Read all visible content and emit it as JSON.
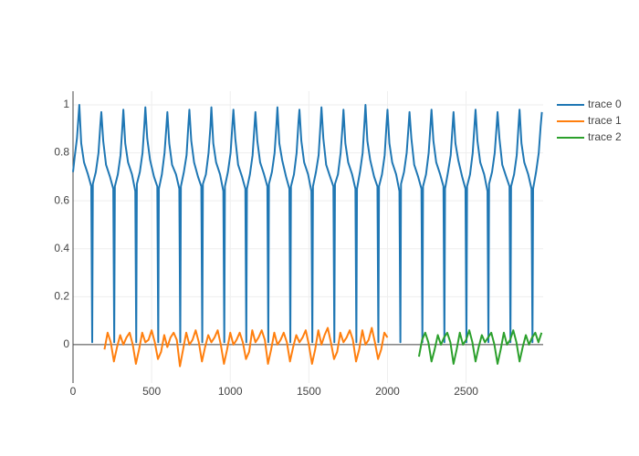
{
  "chart_data": {
    "type": "line",
    "xlim": [
      0,
      2990
    ],
    "ylim": [
      -0.16,
      1.057
    ],
    "xticks": [
      0,
      500,
      1000,
      1500,
      2000,
      2500
    ],
    "yticks": [
      0,
      0.2,
      0.4,
      0.6,
      0.8,
      1
    ],
    "grid": true,
    "legend": "outside-top-right",
    "series": [
      {
        "name": "trace 0",
        "color": "#1f77b4",
        "x": [
          0,
          10,
          25,
          40,
          52,
          70,
          95,
          116,
          122,
          126,
          145,
          162,
          174,
          180,
          192,
          210,
          235,
          256,
          262,
          266,
          285,
          302,
          314,
          320,
          332,
          350,
          375,
          396,
          402,
          406,
          425,
          442,
          454,
          460,
          472,
          490,
          515,
          536,
          542,
          546,
          565,
          582,
          594,
          600,
          612,
          630,
          655,
          676,
          682,
          686,
          705,
          722,
          734,
          740,
          752,
          770,
          795,
          816,
          822,
          826,
          845,
          862,
          874,
          880,
          892,
          910,
          935,
          956,
          962,
          966,
          985,
          1002,
          1014,
          1020,
          1032,
          1050,
          1075,
          1096,
          1102,
          1106,
          1125,
          1142,
          1154,
          1160,
          1172,
          1190,
          1215,
          1236,
          1242,
          1246,
          1265,
          1282,
          1294,
          1300,
          1312,
          1330,
          1355,
          1376,
          1382,
          1386,
          1405,
          1422,
          1434,
          1440,
          1452,
          1470,
          1495,
          1516,
          1522,
          1526,
          1545,
          1562,
          1574,
          1580,
          1592,
          1610,
          1635,
          1656,
          1662,
          1666,
          1685,
          1702,
          1714,
          1720,
          1732,
          1750,
          1775,
          1796,
          1802,
          1806,
          1825,
          1842,
          1854,
          1860,
          1872,
          1890,
          1915,
          1936,
          1942,
          1946,
          1965,
          1982,
          1994,
          2000,
          2012,
          2030,
          2055,
          2076,
          2082,
          2086,
          2105,
          2122,
          2134,
          2140,
          2152,
          2170,
          2195,
          2216,
          2222,
          2226,
          2245,
          2262,
          2274,
          2280,
          2292,
          2310,
          2335,
          2356,
          2362,
          2366,
          2385,
          2402,
          2414,
          2420,
          2432,
          2450,
          2475,
          2496,
          2502,
          2506,
          2525,
          2542,
          2554,
          2560,
          2572,
          2590,
          2615,
          2636,
          2642,
          2646,
          2665,
          2682,
          2694,
          2700,
          2712,
          2730,
          2755,
          2776,
          2782,
          2786,
          2805,
          2822,
          2834,
          2840,
          2852,
          2870,
          2895,
          2916,
          2922,
          2926,
          2945,
          2962,
          2974,
          2982
        ],
        "values": [
          0.72,
          0.78,
          0.86,
          1.0,
          0.84,
          0.76,
          0.71,
          0.66,
          0.01,
          0.67,
          0.72,
          0.8,
          0.92,
          0.97,
          0.85,
          0.75,
          0.7,
          0.65,
          0.01,
          0.66,
          0.71,
          0.79,
          0.91,
          0.98,
          0.84,
          0.76,
          0.71,
          0.64,
          0.01,
          0.67,
          0.72,
          0.8,
          0.92,
          0.99,
          0.86,
          0.77,
          0.7,
          0.66,
          0.01,
          0.65,
          0.71,
          0.8,
          0.91,
          0.97,
          0.84,
          0.75,
          0.71,
          0.65,
          0.01,
          0.66,
          0.72,
          0.79,
          0.92,
          0.98,
          0.85,
          0.76,
          0.7,
          0.66,
          0.01,
          0.67,
          0.71,
          0.8,
          0.91,
          0.99,
          0.84,
          0.76,
          0.71,
          0.64,
          0.01,
          0.66,
          0.72,
          0.8,
          0.92,
          0.98,
          0.86,
          0.75,
          0.7,
          0.65,
          0.01,
          0.65,
          0.71,
          0.79,
          0.91,
          0.97,
          0.85,
          0.76,
          0.71,
          0.66,
          0.01,
          0.67,
          0.72,
          0.8,
          0.92,
          0.99,
          0.84,
          0.77,
          0.7,
          0.65,
          0.01,
          0.66,
          0.71,
          0.8,
          0.93,
          0.98,
          0.85,
          0.76,
          0.71,
          0.64,
          0.01,
          0.66,
          0.72,
          0.79,
          0.92,
          0.99,
          0.86,
          0.75,
          0.7,
          0.66,
          0.01,
          0.67,
          0.71,
          0.8,
          0.91,
          0.98,
          0.84,
          0.76,
          0.71,
          0.65,
          0.01,
          0.65,
          0.72,
          0.8,
          0.93,
          1.0,
          0.85,
          0.77,
          0.7,
          0.66,
          0.01,
          0.66,
          0.71,
          0.79,
          0.92,
          0.98,
          0.84,
          0.76,
          0.71,
          0.64,
          0.01,
          0.67,
          0.72,
          0.8,
          0.91,
          0.97,
          0.86,
          0.75,
          0.7,
          0.65,
          0.01,
          0.66,
          0.71,
          0.8,
          0.92,
          0.98,
          0.85,
          0.76,
          0.71,
          0.66,
          0.01,
          0.65,
          0.72,
          0.79,
          0.91,
          0.97,
          0.84,
          0.77,
          0.7,
          0.65,
          0.01,
          0.66,
          0.71,
          0.8,
          0.92,
          0.98,
          0.85,
          0.76,
          0.71,
          0.64,
          0.01,
          0.67,
          0.72,
          0.8,
          0.91,
          0.97,
          0.86,
          0.75,
          0.7,
          0.66,
          0.01,
          0.66,
          0.71,
          0.79,
          0.92,
          0.98,
          0.84,
          0.76,
          0.71,
          0.65,
          0.01,
          0.65,
          0.72,
          0.8,
          0.91,
          0.97
        ]
      },
      {
        "name": "trace 1",
        "color": "#ff7f0e",
        "x": [
          200,
          220,
          240,
          260,
          280,
          300,
          320,
          340,
          360,
          380,
          400,
          420,
          440,
          460,
          480,
          500,
          520,
          540,
          560,
          580,
          600,
          620,
          640,
          660,
          680,
          700,
          720,
          740,
          760,
          780,
          800,
          820,
          840,
          860,
          880,
          900,
          920,
          940,
          960,
          980,
          1000,
          1020,
          1040,
          1060,
          1080,
          1100,
          1120,
          1140,
          1160,
          1180,
          1200,
          1220,
          1240,
          1260,
          1280,
          1300,
          1320,
          1340,
          1360,
          1380,
          1400,
          1420,
          1440,
          1460,
          1480,
          1500,
          1520,
          1540,
          1560,
          1580,
          1600,
          1620,
          1640,
          1660,
          1680,
          1700,
          1720,
          1740,
          1760,
          1780,
          1800,
          1820,
          1840,
          1860,
          1880,
          1900,
          1920,
          1940,
          1960,
          1980,
          2000
        ],
        "values": [
          -0.02,
          0.05,
          0.01,
          -0.07,
          -0.01,
          0.04,
          0.0,
          0.03,
          0.05,
          0.0,
          -0.08,
          -0.02,
          0.05,
          0.01,
          0.02,
          0.06,
          0.01,
          -0.06,
          -0.03,
          0.04,
          -0.01,
          0.03,
          0.05,
          0.02,
          -0.09,
          -0.02,
          0.05,
          0.0,
          0.02,
          0.06,
          0.01,
          -0.07,
          -0.01,
          0.04,
          0.01,
          0.03,
          0.06,
          0.0,
          -0.08,
          -0.02,
          0.05,
          0.0,
          0.02,
          0.05,
          0.01,
          -0.06,
          -0.03,
          0.06,
          0.01,
          0.03,
          0.06,
          0.02,
          -0.08,
          -0.02,
          0.05,
          0.0,
          0.02,
          0.05,
          0.01,
          -0.07,
          -0.01,
          0.04,
          0.01,
          0.03,
          0.06,
          0.0,
          -0.08,
          -0.02,
          0.06,
          0.0,
          0.04,
          0.07,
          0.01,
          -0.06,
          -0.03,
          0.05,
          0.01,
          0.03,
          0.06,
          0.02,
          -0.07,
          -0.02,
          0.06,
          0.0,
          0.02,
          0.07,
          0.01,
          -0.06,
          -0.02,
          0.05,
          0.03
        ]
      },
      {
        "name": "trace 2",
        "color": "#2ca02c",
        "x": [
          2200,
          2220,
          2240,
          2260,
          2280,
          2300,
          2320,
          2340,
          2360,
          2380,
          2400,
          2420,
          2440,
          2460,
          2480,
          2500,
          2520,
          2540,
          2560,
          2580,
          2600,
          2620,
          2640,
          2660,
          2680,
          2700,
          2720,
          2740,
          2760,
          2780,
          2800,
          2820,
          2840,
          2860,
          2880,
          2900,
          2920,
          2940,
          2960,
          2980
        ],
        "values": [
          -0.05,
          0.02,
          0.05,
          0.01,
          -0.07,
          -0.02,
          0.04,
          0.0,
          0.03,
          0.05,
          0.01,
          -0.08,
          -0.02,
          0.05,
          0.0,
          0.02,
          0.06,
          0.01,
          -0.07,
          -0.01,
          0.04,
          0.01,
          0.03,
          0.05,
          0.0,
          -0.08,
          -0.02,
          0.05,
          0.0,
          0.02,
          0.06,
          0.01,
          -0.07,
          -0.01,
          0.04,
          0.0,
          0.03,
          0.05,
          0.01,
          0.05
        ]
      }
    ]
  }
}
